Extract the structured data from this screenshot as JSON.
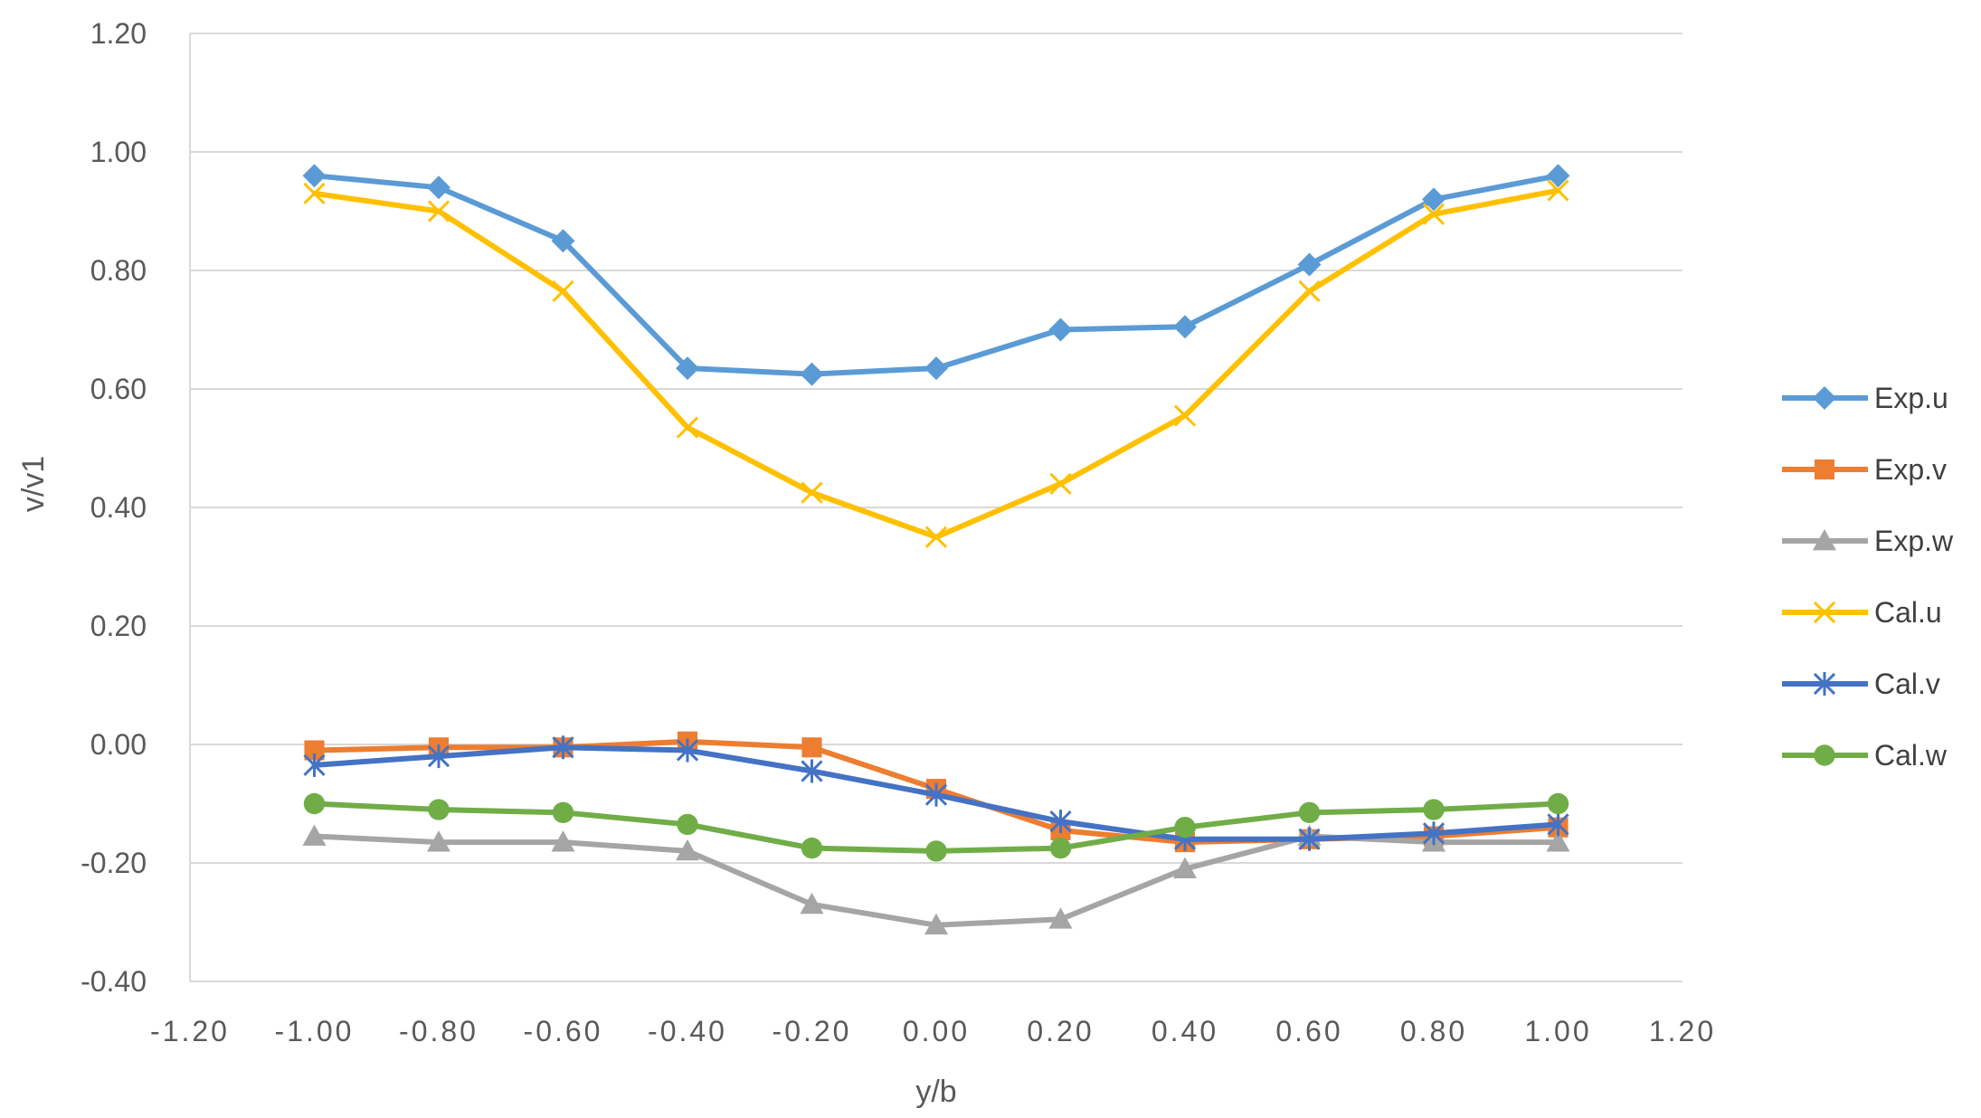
{
  "chart_data": {
    "type": "line",
    "title": "",
    "xlabel": "y/b",
    "ylabel": "v/v1",
    "xlim": [
      -1.2,
      1.2
    ],
    "ylim": [
      -0.4,
      1.2
    ],
    "x_ticks": [
      "-1.20",
      "-1.00",
      "-0.80",
      "-0.60",
      "-0.40",
      "-0.20",
      "0.00",
      "0.20",
      "0.40",
      "0.60",
      "0.80",
      "1.00",
      "1.20"
    ],
    "y_ticks": [
      "-0.40",
      "-0.20",
      "0.00",
      "0.20",
      "0.40",
      "0.60",
      "0.80",
      "1.00",
      "1.20"
    ],
    "grid": "horizontal",
    "legend_position": "right",
    "x": [
      -1.0,
      -0.8,
      -0.6,
      -0.4,
      -0.2,
      0.0,
      0.2,
      0.4,
      0.6,
      0.8,
      1.0
    ],
    "series": [
      {
        "name": "Exp.u",
        "marker": "diamond",
        "color": "#5B9BD5",
        "values": [
          0.96,
          0.94,
          0.85,
          0.635,
          0.625,
          0.635,
          0.7,
          0.705,
          0.81,
          0.92,
          0.96
        ]
      },
      {
        "name": "Exp.v",
        "marker": "square",
        "color": "#ED7D31",
        "values": [
          -0.01,
          -0.005,
          -0.005,
          0.005,
          -0.005,
          -0.075,
          -0.145,
          -0.165,
          -0.16,
          -0.155,
          -0.14
        ]
      },
      {
        "name": "Exp.w",
        "marker": "triangle",
        "color": "#A5A5A5",
        "values": [
          -0.155,
          -0.165,
          -0.165,
          -0.18,
          -0.27,
          -0.305,
          -0.295,
          -0.21,
          -0.155,
          -0.165,
          -0.165
        ]
      },
      {
        "name": "Cal.u",
        "marker": "x",
        "color": "#FFC000",
        "values": [
          0.93,
          0.9,
          0.765,
          0.535,
          0.425,
          0.35,
          0.44,
          0.555,
          0.765,
          0.895,
          0.935
        ]
      },
      {
        "name": "Cal.v",
        "marker": "star",
        "color": "#4472C4",
        "values": [
          -0.035,
          -0.02,
          -0.005,
          -0.01,
          -0.045,
          -0.085,
          -0.13,
          -0.16,
          -0.16,
          -0.15,
          -0.135
        ]
      },
      {
        "name": "Cal.w",
        "marker": "circle",
        "color": "#70AD47",
        "values": [
          -0.1,
          -0.11,
          -0.115,
          -0.135,
          -0.175,
          -0.18,
          -0.175,
          -0.14,
          -0.115,
          -0.11,
          -0.1
        ]
      }
    ]
  }
}
